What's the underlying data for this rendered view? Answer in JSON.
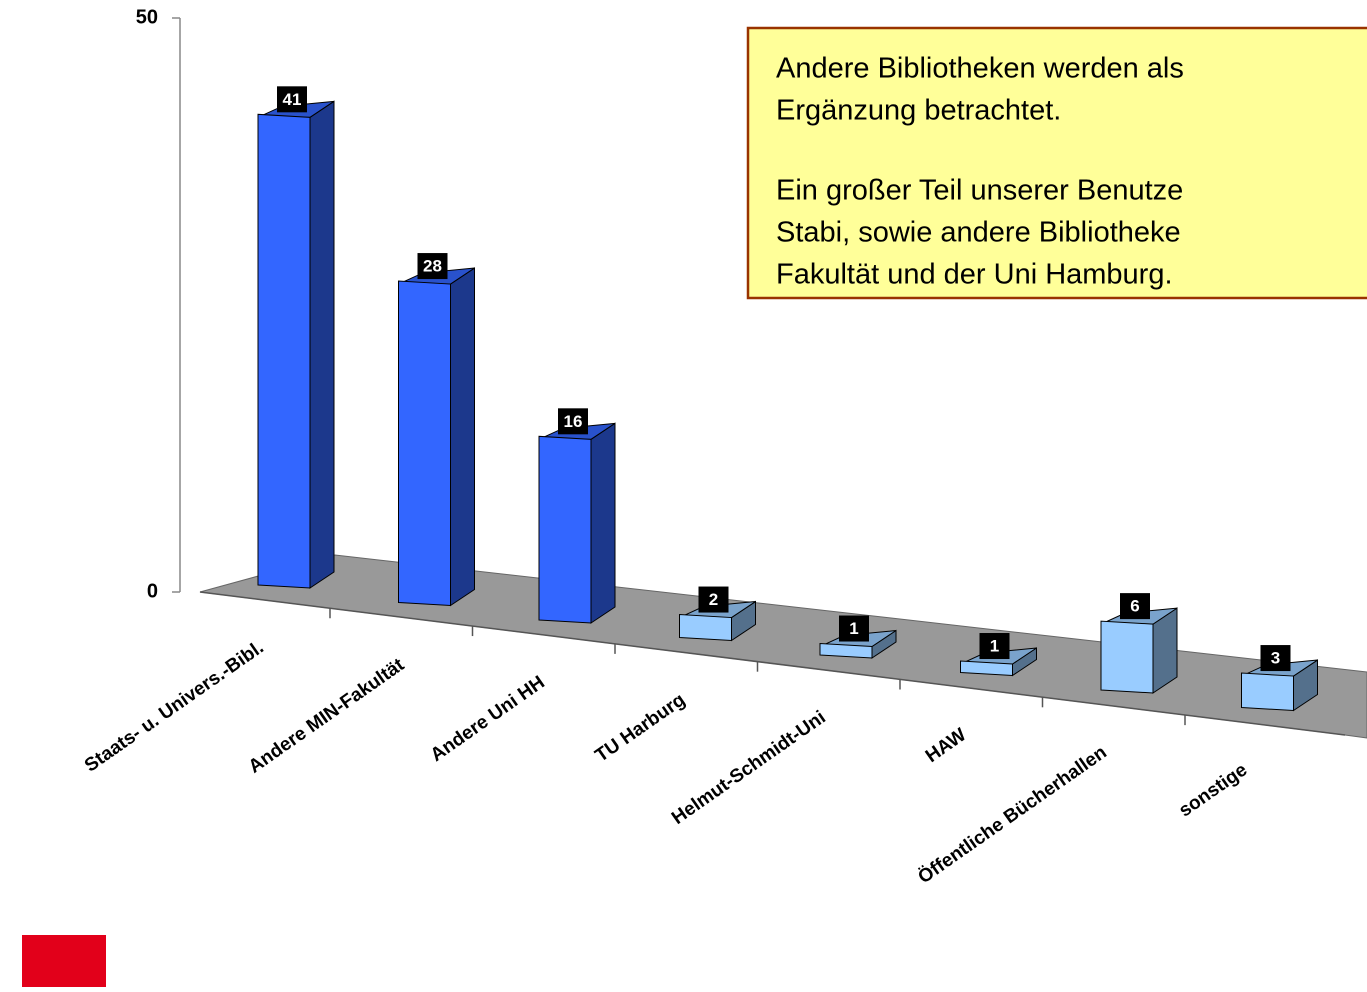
{
  "chart_data": {
    "type": "bar3d",
    "categories": [
      "Staats- u. Univers.-Bibl.",
      "Andere MIN-Fakultät",
      "Andere Uni HH",
      "TU Harburg",
      "Helmut-Schmidt-Uni",
      "HAW",
      "Öffentliche Bücherhallen",
      "sonstige"
    ],
    "values": [
      41,
      28,
      16,
      2,
      1,
      1,
      6,
      3
    ],
    "colors": [
      "#3366ff",
      "#3366ff",
      "#3366ff",
      "#99ccff",
      "#99ccff",
      "#99ccff",
      "#99ccff",
      "#99ccff"
    ],
    "ylim": [
      0,
      50
    ],
    "yticks": [
      0,
      50
    ],
    "annotation": {
      "paragraphs": [
        [
          "Andere Bibliotheken werden als",
          "Ergänzung betrachtet."
        ],
        [
          "Ein großer Teil unserer Benutze",
          "Stabi, sowie andere Bibliotheke",
          "Fakultät und der Uni Hamburg."
        ]
      ]
    }
  }
}
